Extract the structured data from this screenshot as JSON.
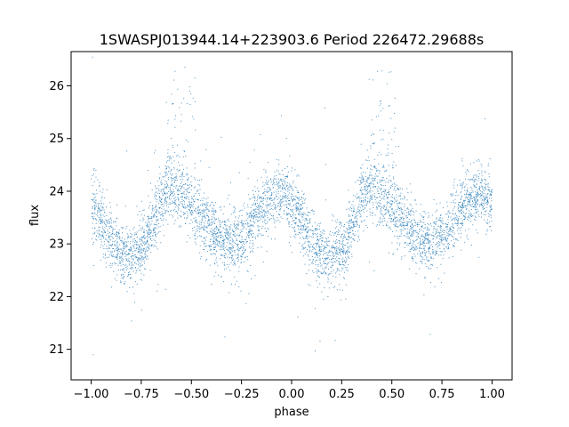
{
  "chart_data": {
    "type": "scatter",
    "title": "1SWASPJ013944.14+223903.6 Period 226472.29688s",
    "xlabel": "phase",
    "ylabel": "flux",
    "xlim": [
      -1.1,
      1.1
    ],
    "ylim": [
      20.42,
      26.65
    ],
    "xticks": [
      -1.0,
      -0.75,
      -0.5,
      -0.25,
      0.0,
      0.25,
      0.5,
      0.75,
      1.0
    ],
    "xtick_labels": [
      "−1.00",
      "−0.75",
      "−0.50",
      "−0.25",
      "0.00",
      "0.25",
      "0.50",
      "0.75",
      "1.00"
    ],
    "yticks": [
      21,
      22,
      23,
      24,
      25,
      26
    ],
    "ytick_labels": [
      "21",
      "22",
      "23",
      "24",
      "25",
      "26"
    ],
    "grid": false,
    "marker_color": "#1f77b4",
    "light_curve_trend": {
      "phase": [
        -1.0,
        -0.95,
        -0.9,
        -0.85,
        -0.8,
        -0.75,
        -0.7,
        -0.65,
        -0.6,
        -0.55,
        -0.5,
        -0.45,
        -0.4,
        -0.35,
        -0.3,
        -0.25,
        -0.2,
        -0.15,
        -0.1,
        -0.05,
        0.0,
        0.05,
        0.1,
        0.15,
        0.2,
        0.25,
        0.3,
        0.35,
        0.4,
        0.45,
        0.5,
        0.55,
        0.6,
        0.65,
        0.7,
        0.75,
        0.8,
        0.85,
        0.9,
        0.95,
        1.0
      ],
      "flux": [
        23.8,
        23.5,
        23.0,
        22.8,
        22.75,
        22.9,
        23.3,
        23.85,
        24.1,
        23.9,
        23.7,
        23.5,
        23.3,
        23.1,
        23.0,
        23.1,
        23.4,
        23.7,
        23.85,
        23.95,
        23.8,
        23.5,
        23.0,
        22.8,
        22.75,
        22.9,
        23.3,
        23.85,
        24.1,
        23.9,
        23.7,
        23.5,
        23.3,
        23.1,
        23.0,
        23.1,
        23.4,
        23.7,
        23.85,
        23.95,
        23.8
      ]
    },
    "flare_regions": [
      {
        "phase_min": -0.62,
        "phase_max": -0.48,
        "flux_max": 26.3
      },
      {
        "phase_min": 0.38,
        "phase_max": 0.52,
        "flux_max": 26.3
      }
    ],
    "point_count": 5000,
    "scatter_sigma": 0.3
  }
}
